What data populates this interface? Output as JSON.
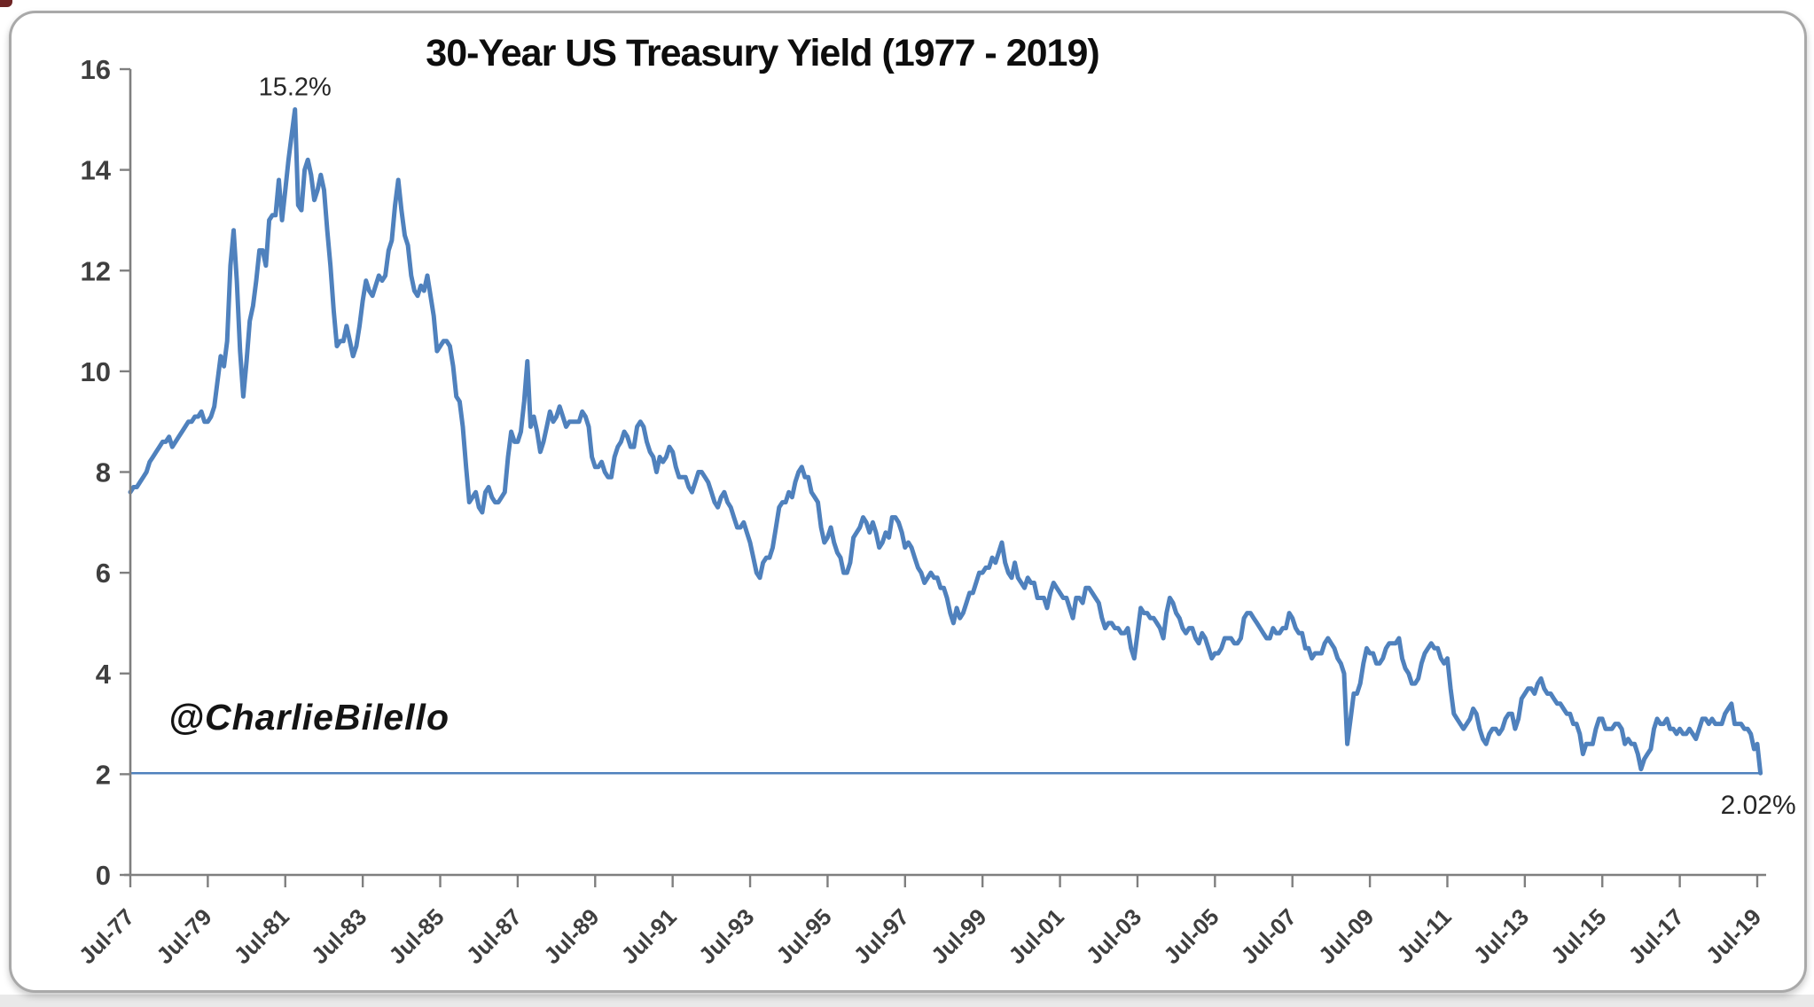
{
  "page": {
    "bottom_strip_color": "#e9e9e9",
    "card_border_color": "#a9a9a9",
    "card_background": "#ffffff"
  },
  "chart_data": {
    "type": "line",
    "title": "30-Year US Treasury Yield (1977 - 2019)",
    "watermark": "@CharlieBilello",
    "grid": "off",
    "legend": "none",
    "xlabel": "",
    "ylabel": "",
    "ylim": [
      0,
      16
    ],
    "y_ticks": [
      0,
      2,
      4,
      6,
      8,
      10,
      12,
      14,
      16
    ],
    "x_tick_labels": [
      "Jul-77",
      "Jul-79",
      "Jul-81",
      "Jul-83",
      "Jul-85",
      "Jul-87",
      "Jul-89",
      "Jul-91",
      "Jul-93",
      "Jul-95",
      "Jul-97",
      "Jul-99",
      "Jul-01",
      "Jul-03",
      "Jul-05",
      "Jul-07",
      "Jul-09",
      "Jul-11",
      "Jul-13",
      "Jul-15",
      "Jul-17",
      "Jul-19"
    ],
    "axis_color": "#7f7f7f",
    "tick_label_color": "#3f3f3f",
    "annotation_color": "#262626",
    "annotations": {
      "peak_label": "15.2%",
      "peak_value": 15.2,
      "last_label": "2.02%",
      "last_value": 2.02
    },
    "reference_line": {
      "value": 2.02,
      "color": "#4f81bd"
    },
    "series": [
      {
        "name": "30-Year US Treasury Yield",
        "color": "#4f81bd",
        "start": "Jul-1977",
        "end": "Aug-2019",
        "frequency": "monthly",
        "values": [
          7.6,
          7.7,
          7.7,
          7.8,
          7.9,
          8.0,
          8.2,
          8.3,
          8.4,
          8.5,
          8.6,
          8.6,
          8.7,
          8.5,
          8.6,
          8.7,
          8.8,
          8.9,
          9.0,
          9.0,
          9.1,
          9.1,
          9.2,
          9.0,
          9.0,
          9.1,
          9.3,
          9.8,
          10.3,
          10.1,
          10.6,
          12.1,
          12.8,
          11.8,
          10.4,
          9.5,
          10.2,
          11.0,
          11.3,
          11.8,
          12.4,
          12.4,
          12.1,
          13.0,
          13.1,
          13.1,
          13.8,
          13.0,
          13.6,
          14.2,
          14.7,
          15.2,
          13.3,
          13.2,
          14.0,
          14.2,
          13.9,
          13.4,
          13.6,
          13.9,
          13.6,
          12.8,
          12.1,
          11.2,
          10.5,
          10.6,
          10.6,
          10.9,
          10.6,
          10.3,
          10.5,
          10.9,
          11.4,
          11.8,
          11.6,
          11.5,
          11.7,
          11.9,
          11.8,
          11.9,
          12.4,
          12.6,
          13.3,
          13.8,
          13.2,
          12.7,
          12.5,
          11.9,
          11.6,
          11.5,
          11.7,
          11.6,
          11.9,
          11.5,
          11.1,
          10.4,
          10.5,
          10.6,
          10.6,
          10.5,
          10.1,
          9.5,
          9.4,
          8.9,
          8.1,
          7.4,
          7.5,
          7.6,
          7.3,
          7.2,
          7.6,
          7.7,
          7.5,
          7.4,
          7.4,
          7.5,
          7.6,
          8.3,
          8.8,
          8.6,
          8.6,
          8.8,
          9.4,
          10.2,
          8.9,
          9.1,
          8.8,
          8.4,
          8.6,
          8.9,
          9.2,
          9.0,
          9.1,
          9.3,
          9.1,
          8.9,
          9.0,
          9.0,
          9.0,
          9.0,
          9.2,
          9.1,
          8.9,
          8.3,
          8.1,
          8.1,
          8.2,
          8.0,
          7.9,
          7.9,
          8.3,
          8.5,
          8.6,
          8.8,
          8.7,
          8.5,
          8.5,
          8.9,
          9.0,
          8.9,
          8.6,
          8.4,
          8.3,
          8.0,
          8.3,
          8.2,
          8.3,
          8.5,
          8.4,
          8.1,
          7.9,
          7.9,
          7.9,
          7.7,
          7.6,
          7.8,
          8.0,
          8.0,
          7.9,
          7.8,
          7.6,
          7.4,
          7.3,
          7.5,
          7.6,
          7.4,
          7.3,
          7.1,
          6.9,
          6.9,
          7.0,
          6.8,
          6.6,
          6.3,
          6.0,
          5.9,
          6.2,
          6.3,
          6.3,
          6.5,
          6.9,
          7.3,
          7.4,
          7.4,
          7.6,
          7.5,
          7.8,
          8.0,
          8.1,
          7.9,
          7.9,
          7.6,
          7.5,
          7.4,
          6.9,
          6.6,
          6.7,
          6.9,
          6.6,
          6.4,
          6.3,
          6.0,
          6.0,
          6.2,
          6.7,
          6.8,
          6.9,
          7.1,
          7.0,
          6.8,
          7.0,
          6.8,
          6.5,
          6.6,
          6.8,
          6.7,
          7.1,
          7.1,
          7.0,
          6.8,
          6.5,
          6.6,
          6.5,
          6.3,
          6.1,
          6.0,
          5.8,
          5.9,
          6.0,
          5.9,
          5.9,
          5.7,
          5.7,
          5.5,
          5.2,
          5.0,
          5.3,
          5.1,
          5.2,
          5.4,
          5.6,
          5.6,
          5.8,
          6.0,
          6.0,
          6.1,
          6.1,
          6.3,
          6.2,
          6.4,
          6.6,
          6.2,
          6.0,
          5.9,
          6.2,
          5.9,
          5.8,
          5.7,
          5.9,
          5.8,
          5.8,
          5.5,
          5.5,
          5.5,
          5.3,
          5.6,
          5.8,
          5.7,
          5.6,
          5.5,
          5.5,
          5.3,
          5.1,
          5.5,
          5.5,
          5.4,
          5.7,
          5.7,
          5.6,
          5.5,
          5.4,
          5.1,
          4.9,
          5.0,
          5.0,
          4.9,
          4.9,
          4.8,
          4.8,
          4.9,
          4.5,
          4.3,
          4.8,
          5.3,
          5.2,
          5.2,
          5.1,
          5.1,
          5.0,
          4.9,
          4.7,
          5.2,
          5.5,
          5.4,
          5.2,
          5.1,
          4.9,
          4.8,
          4.9,
          4.9,
          4.7,
          4.6,
          4.8,
          4.7,
          4.5,
          4.3,
          4.4,
          4.4,
          4.5,
          4.7,
          4.7,
          4.7,
          4.6,
          4.6,
          4.7,
          5.1,
          5.2,
          5.2,
          5.1,
          5.0,
          4.9,
          4.8,
          4.7,
          4.7,
          4.9,
          4.8,
          4.8,
          4.9,
          4.9,
          5.2,
          5.1,
          4.9,
          4.8,
          4.8,
          4.5,
          4.5,
          4.3,
          4.4,
          4.4,
          4.4,
          4.6,
          4.7,
          4.6,
          4.5,
          4.3,
          4.2,
          4.0,
          2.6,
          3.1,
          3.6,
          3.6,
          3.8,
          4.2,
          4.5,
          4.4,
          4.4,
          4.2,
          4.2,
          4.3,
          4.5,
          4.6,
          4.6,
          4.6,
          4.7,
          4.3,
          4.1,
          4.0,
          3.8,
          3.8,
          3.9,
          4.2,
          4.4,
          4.5,
          4.6,
          4.5,
          4.5,
          4.3,
          4.2,
          4.3,
          3.7,
          3.2,
          3.1,
          3.0,
          2.9,
          3.0,
          3.1,
          3.3,
          3.2,
          2.9,
          2.7,
          2.6,
          2.8,
          2.9,
          2.9,
          2.8,
          2.9,
          3.1,
          3.2,
          3.2,
          2.9,
          3.1,
          3.5,
          3.6,
          3.7,
          3.7,
          3.6,
          3.8,
          3.9,
          3.7,
          3.6,
          3.6,
          3.5,
          3.4,
          3.4,
          3.3,
          3.2,
          3.2,
          3.0,
          3.0,
          2.8,
          2.4,
          2.6,
          2.6,
          2.6,
          2.9,
          3.1,
          3.1,
          2.9,
          2.9,
          2.9,
          3.0,
          3.0,
          2.9,
          2.6,
          2.7,
          2.6,
          2.6,
          2.4,
          2.1,
          2.3,
          2.4,
          2.5,
          2.9,
          3.1,
          3.0,
          3.0,
          3.1,
          2.9,
          2.9,
          2.8,
          2.9,
          2.8,
          2.8,
          2.9,
          2.8,
          2.7,
          2.9,
          3.1,
          3.1,
          3.0,
          3.1,
          3.0,
          3.0,
          3.0,
          3.2,
          3.3,
          3.4,
          3.0,
          3.0,
          3.0,
          2.9,
          2.9,
          2.8,
          2.5,
          2.6,
          2.02
        ]
      }
    ]
  }
}
